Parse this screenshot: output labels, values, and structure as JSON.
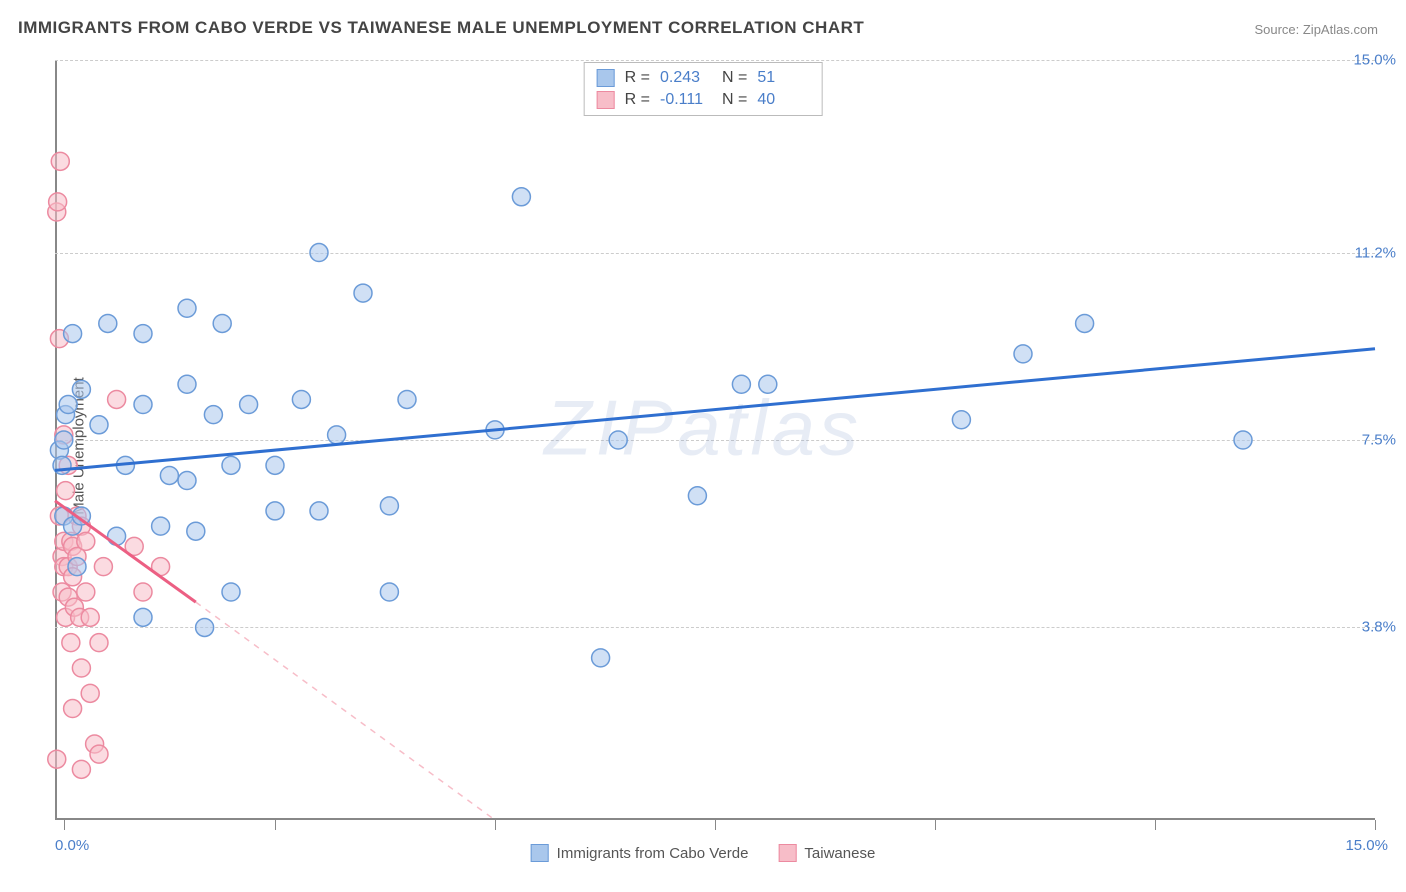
{
  "title": "IMMIGRANTS FROM CABO VERDE VS TAIWANESE MALE UNEMPLOYMENT CORRELATION CHART",
  "source": "Source: ZipAtlas.com",
  "y_axis_label": "Male Unemployment",
  "watermark": "ZIPatlas",
  "chart": {
    "type": "scatter",
    "xlim": [
      0,
      15
    ],
    "ylim": [
      0,
      15
    ],
    "y_ticks": [
      3.8,
      7.5,
      11.2,
      15.0
    ],
    "y_tick_labels": [
      "3.8%",
      "7.5%",
      "11.2%",
      "15.0%"
    ],
    "x_min_label": "0.0%",
    "x_max_label": "15.0%",
    "x_tick_positions": [
      0.1,
      2.5,
      5.0,
      7.5,
      10.0,
      12.5,
      15.0
    ],
    "grid_color": "#cccccc",
    "axis_color": "#888888",
    "background_color": "#ffffff",
    "marker_radius": 9,
    "marker_opacity": 0.55,
    "series": [
      {
        "name": "Immigrants from Cabo Verde",
        "color_fill": "#a9c7ec",
        "color_stroke": "#6b9bd8",
        "R": "0.243",
        "N": "51",
        "trend": {
          "x1": 0,
          "y1": 6.9,
          "x2": 15,
          "y2": 9.3,
          "stroke": "#2f6fd0",
          "width": 3,
          "dash": ""
        },
        "points": [
          [
            0.05,
            7.3
          ],
          [
            0.08,
            7.0
          ],
          [
            0.1,
            7.5
          ],
          [
            0.1,
            6.0
          ],
          [
            0.12,
            8.0
          ],
          [
            0.15,
            8.2
          ],
          [
            0.2,
            5.8
          ],
          [
            0.2,
            9.6
          ],
          [
            0.25,
            5.0
          ],
          [
            0.3,
            6.0
          ],
          [
            0.3,
            8.5
          ],
          [
            0.5,
            7.8
          ],
          [
            0.6,
            9.8
          ],
          [
            0.7,
            5.6
          ],
          [
            0.8,
            7.0
          ],
          [
            1.0,
            9.6
          ],
          [
            1.0,
            8.2
          ],
          [
            1.0,
            4.0
          ],
          [
            1.2,
            5.8
          ],
          [
            1.3,
            6.8
          ],
          [
            1.5,
            10.1
          ],
          [
            1.5,
            8.6
          ],
          [
            1.5,
            6.7
          ],
          [
            1.6,
            5.7
          ],
          [
            1.7,
            3.8
          ],
          [
            1.8,
            8.0
          ],
          [
            1.9,
            9.8
          ],
          [
            2.0,
            7.0
          ],
          [
            2.0,
            4.5
          ],
          [
            2.2,
            8.2
          ],
          [
            2.5,
            6.1
          ],
          [
            2.5,
            7.0
          ],
          [
            2.8,
            8.3
          ],
          [
            3.0,
            11.2
          ],
          [
            3.0,
            6.1
          ],
          [
            3.2,
            7.6
          ],
          [
            3.5,
            10.4
          ],
          [
            3.8,
            4.5
          ],
          [
            3.8,
            6.2
          ],
          [
            4.0,
            8.3
          ],
          [
            5.0,
            7.7
          ],
          [
            5.3,
            12.3
          ],
          [
            6.2,
            3.2
          ],
          [
            6.4,
            7.5
          ],
          [
            7.3,
            6.4
          ],
          [
            7.8,
            8.6
          ],
          [
            8.1,
            8.6
          ],
          [
            10.3,
            7.9
          ],
          [
            11.0,
            9.2
          ],
          [
            11.7,
            9.8
          ],
          [
            13.5,
            7.5
          ]
        ]
      },
      {
        "name": "Taiwanese",
        "color_fill": "#f7bdc8",
        "color_stroke": "#ec8aa0",
        "R": "-0.111",
        "N": "40",
        "trend": {
          "x1": 0,
          "y1": 6.3,
          "x2": 1.6,
          "y2": 4.3,
          "stroke": "#ec5f83",
          "width": 3,
          "dash": ""
        },
        "trend_ext": {
          "x1": 1.6,
          "y1": 4.3,
          "x2": 5.0,
          "y2": 0,
          "stroke": "#f7bdc8",
          "width": 1.5,
          "dash": "6 6"
        },
        "points": [
          [
            0.02,
            1.2
          ],
          [
            0.02,
            12.0
          ],
          [
            0.03,
            12.2
          ],
          [
            0.05,
            9.5
          ],
          [
            0.05,
            6.0
          ],
          [
            0.06,
            13.0
          ],
          [
            0.08,
            5.2
          ],
          [
            0.08,
            4.5
          ],
          [
            0.1,
            7.6
          ],
          [
            0.1,
            5.0
          ],
          [
            0.1,
            5.5
          ],
          [
            0.12,
            6.5
          ],
          [
            0.12,
            4.0
          ],
          [
            0.15,
            5.0
          ],
          [
            0.15,
            4.4
          ],
          [
            0.15,
            7.0
          ],
          [
            0.18,
            5.5
          ],
          [
            0.18,
            3.5
          ],
          [
            0.2,
            4.8
          ],
          [
            0.2,
            5.4
          ],
          [
            0.2,
            2.2
          ],
          [
            0.22,
            4.2
          ],
          [
            0.25,
            5.2
          ],
          [
            0.25,
            6.0
          ],
          [
            0.28,
            4.0
          ],
          [
            0.3,
            3.0
          ],
          [
            0.3,
            1.0
          ],
          [
            0.3,
            5.8
          ],
          [
            0.35,
            5.5
          ],
          [
            0.35,
            4.5
          ],
          [
            0.4,
            2.5
          ],
          [
            0.4,
            4.0
          ],
          [
            0.45,
            1.5
          ],
          [
            0.5,
            3.5
          ],
          [
            0.5,
            1.3
          ],
          [
            0.55,
            5.0
          ],
          [
            0.7,
            8.3
          ],
          [
            0.9,
            5.4
          ],
          [
            1.0,
            4.5
          ],
          [
            1.2,
            5.0
          ]
        ]
      }
    ]
  },
  "legend_bottom": [
    {
      "label": "Immigrants from Cabo Verde",
      "fill": "#a9c7ec",
      "stroke": "#6b9bd8"
    },
    {
      "label": "Taiwanese",
      "fill": "#f7bdc8",
      "stroke": "#ec8aa0"
    }
  ]
}
